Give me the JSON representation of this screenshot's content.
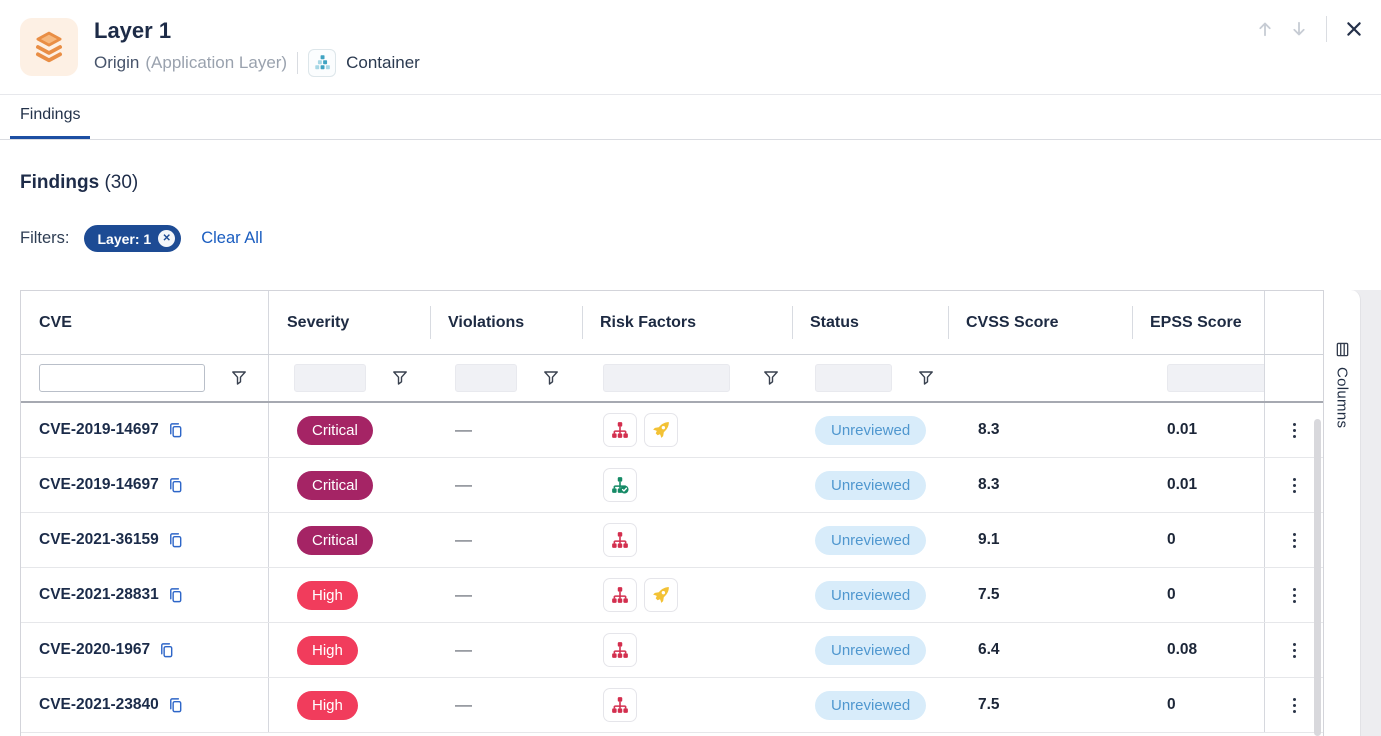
{
  "header": {
    "title": "Layer 1",
    "origin_label": "Origin",
    "origin_detail": "(Application Layer)",
    "type_label": "Container"
  },
  "tabs": [
    {
      "label": "Findings",
      "active": true
    }
  ],
  "findings": {
    "heading": "Findings",
    "count": "(30)",
    "filters_label": "Filters:",
    "filter_chip": "Layer: 1",
    "clear_all": "Clear All"
  },
  "table": {
    "columns": [
      "CVE",
      "Severity",
      "Violations",
      "Risk Factors",
      "Status",
      "CVSS Score",
      "EPSS Score"
    ],
    "columns_button": "Columns",
    "rows": [
      {
        "cve": "CVE-2019-14697",
        "severity": "Critical",
        "violations": "—",
        "risk_factors": [
          "attack-vector-network-icon",
          "exploit-exists-icon"
        ],
        "status": "Unreviewed",
        "cvss": "8.3",
        "epss": "0.01"
      },
      {
        "cve": "CVE-2019-14697",
        "severity": "Critical",
        "violations": "—",
        "risk_factors": [
          "fix-available-icon"
        ],
        "status": "Unreviewed",
        "cvss": "8.3",
        "epss": "0.01"
      },
      {
        "cve": "CVE-2021-36159",
        "severity": "Critical",
        "violations": "—",
        "risk_factors": [
          "attack-vector-network-icon"
        ],
        "status": "Unreviewed",
        "cvss": "9.1",
        "epss": "0"
      },
      {
        "cve": "CVE-2021-28831",
        "severity": "High",
        "violations": "—",
        "risk_factors": [
          "attack-vector-network-icon",
          "exploit-exists-icon"
        ],
        "status": "Unreviewed",
        "cvss": "7.5",
        "epss": "0"
      },
      {
        "cve": "CVE-2020-1967",
        "severity": "High",
        "violations": "—",
        "risk_factors": [
          "attack-vector-network-icon"
        ],
        "status": "Unreviewed",
        "cvss": "6.4",
        "epss": "0.08"
      },
      {
        "cve": "CVE-2021-23840",
        "severity": "High",
        "violations": "—",
        "risk_factors": [
          "attack-vector-network-icon"
        ],
        "status": "Unreviewed",
        "cvss": "7.5",
        "epss": "0"
      }
    ]
  },
  "colors": {
    "accent_blue": "#1d4fa3",
    "chip_bg": "#1d4b94",
    "link_blue": "#1a5dc0",
    "severity_critical": "#a52465",
    "severity_high": "#f13c5c",
    "status_unreviewed_bg": "#d8ecfa",
    "status_unreviewed_text": "#4f97cf",
    "risk_network": "#d32f4e",
    "risk_exploit": "#f3c235",
    "risk_fix": "#158a66",
    "layer_icon_orange": "#e98e45"
  }
}
